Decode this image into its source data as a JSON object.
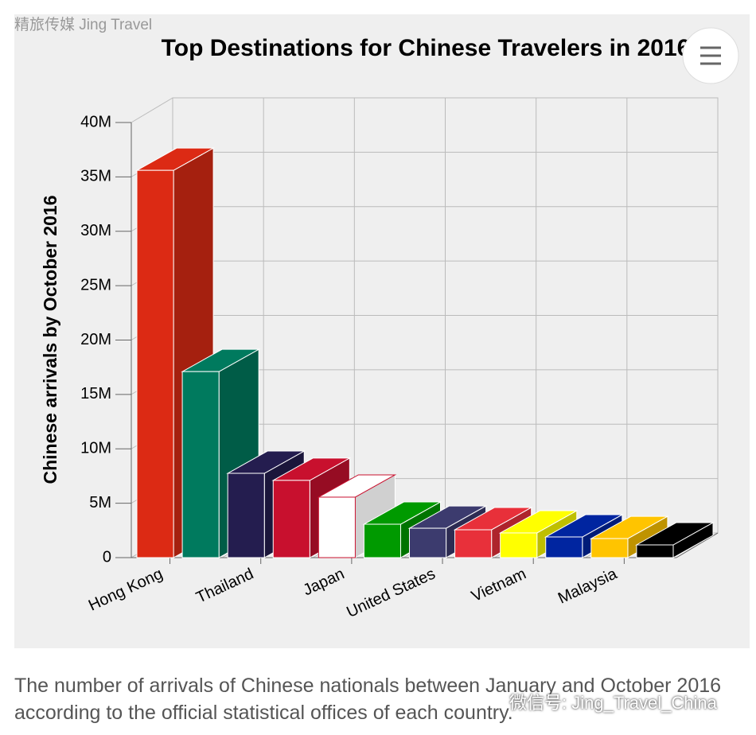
{
  "header": "精旅传媒 Jing Travel",
  "chart_data": {
    "type": "bar3d",
    "title": "Top Destinations for Chinese Travelers in 2016",
    "y_label": "Chinese arrivals by October 2016",
    "categories": [
      "Hong Kong",
      null,
      "Thailand",
      null,
      "Japan",
      null,
      "United States",
      null,
      "Vietnam",
      null,
      "Malaysia",
      null
    ],
    "values": [
      35600000,
      17100000,
      7750000,
      7100000,
      5560000,
      3070000,
      2700000,
      2560000,
      2270000,
      1900000,
      1750000,
      1170000
    ],
    "colors": [
      "#dc2a14",
      "#007a5e",
      "#241d4f",
      "#c8102e",
      "#ffffff",
      "#009a00",
      "#3c3b6e",
      "#e8303a",
      "#ffff00",
      "#0025a0",
      "#ffc400",
      "#000000"
    ],
    "ylim": [
      0,
      40000000
    ],
    "yticks": [
      0,
      {
        "value": 5000000,
        "label": "5M"
      },
      {
        "value": 10000000,
        "label": "10M"
      },
      {
        "value": 15000000,
        "label": "15M"
      },
      {
        "value": 20000000,
        "label": "20M"
      },
      {
        "value": 25000000,
        "label": "25M"
      },
      {
        "value": 30000000,
        "label": "30M"
      },
      {
        "value": 35000000,
        "label": "35M"
      },
      {
        "value": 40000000,
        "label": "40M"
      }
    ],
    "grid": true
  },
  "caption": "The number of arrivals of Chinese nationals between January and October 2016 according to the official statistical offices of each country.",
  "watermark": "微信号: Jing_Travel_China"
}
